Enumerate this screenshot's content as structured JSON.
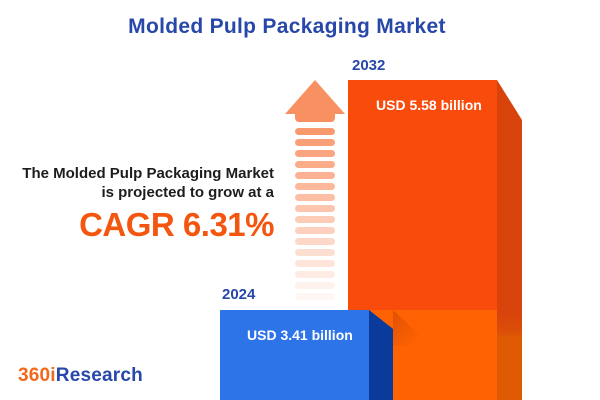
{
  "title": "Molded Pulp Packaging Market",
  "annotation": {
    "line1": "The Molded Pulp Packaging Market",
    "line2": "is projected to grow at a",
    "cagr": "CAGR 6.31%"
  },
  "bars": [
    {
      "year": "2024",
      "value_label": "USD 3.41 billion",
      "front_color": "#2E74E9",
      "side_color": "#0A3B9B"
    },
    {
      "year": "2032",
      "value_label": "USD 5.58 billion",
      "front_color": "#F84B0C",
      "side_color": "#D8430B"
    }
  ],
  "logo": {
    "prefix": "360i",
    "suffix": "Research"
  },
  "colors": {
    "title_blue": "#2747A9",
    "cagr_orange": "#F4550F",
    "arrow_orange": "#F99062",
    "text_dark": "#1D1D1D",
    "bar_2024_front": "#2E74E9",
    "bar_2024_side": "#0A3B9B",
    "bar_2032_front_top": "#F84B0C",
    "bar_2032_front_bottom": "#FE6202",
    "bar_2032_side": "#D8430B",
    "logo_orange": "#F2691D",
    "logo_blue": "#2747A9"
  },
  "chart_data": {
    "type": "bar",
    "title": "Molded Pulp Packaging Market",
    "categories": [
      "2024",
      "2032"
    ],
    "values": [
      3.41,
      5.58
    ],
    "unit": "USD billion",
    "value_labels": [
      "USD 3.41 billion",
      "USD 5.58 billion"
    ],
    "cagr_percent": 6.31,
    "annotations": [
      "The Molded Pulp Packaging Market is projected to grow at a CAGR 6.31%"
    ],
    "orientation": "vertical",
    "grid": false,
    "legend": "none",
    "not_to_scale": true
  }
}
